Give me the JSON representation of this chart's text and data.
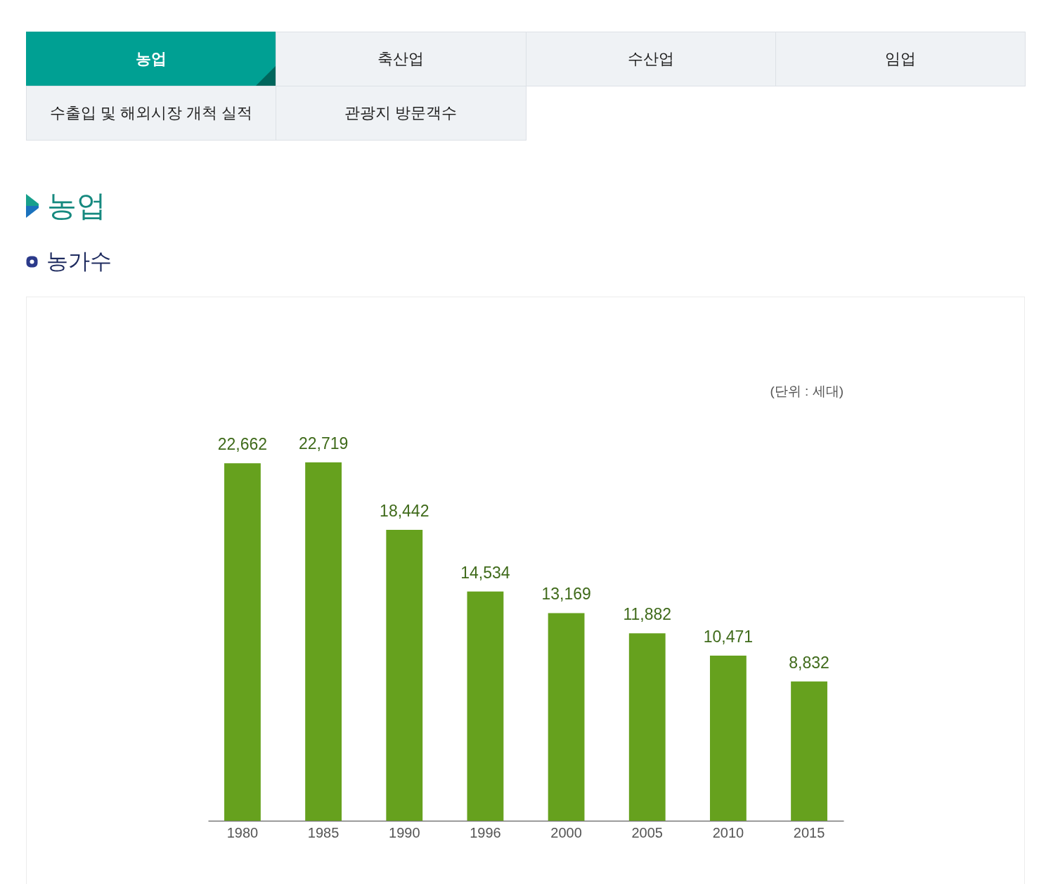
{
  "chart_data": {
    "type": "bar",
    "title": "농업",
    "subtitle": "농가수",
    "categories": [
      "1980",
      "1985",
      "1990",
      "1996",
      "2000",
      "2005",
      "2010",
      "2015"
    ],
    "values": [
      22662,
      22719,
      18442,
      14534,
      13169,
      11882,
      10471,
      8832
    ],
    "value_labels": [
      "22,662",
      "22,719",
      "18,442",
      "14,534",
      "13,169",
      "11,882",
      "10,471",
      "8,832"
    ],
    "color": "#66a11e",
    "annotations": [
      "농업",
      "축산업",
      "수산업",
      "임업",
      "수출입 및 해외시장 개척 실적",
      "관광지 방문객수",
      "(단위 : 세대)"
    ]
  }
}
